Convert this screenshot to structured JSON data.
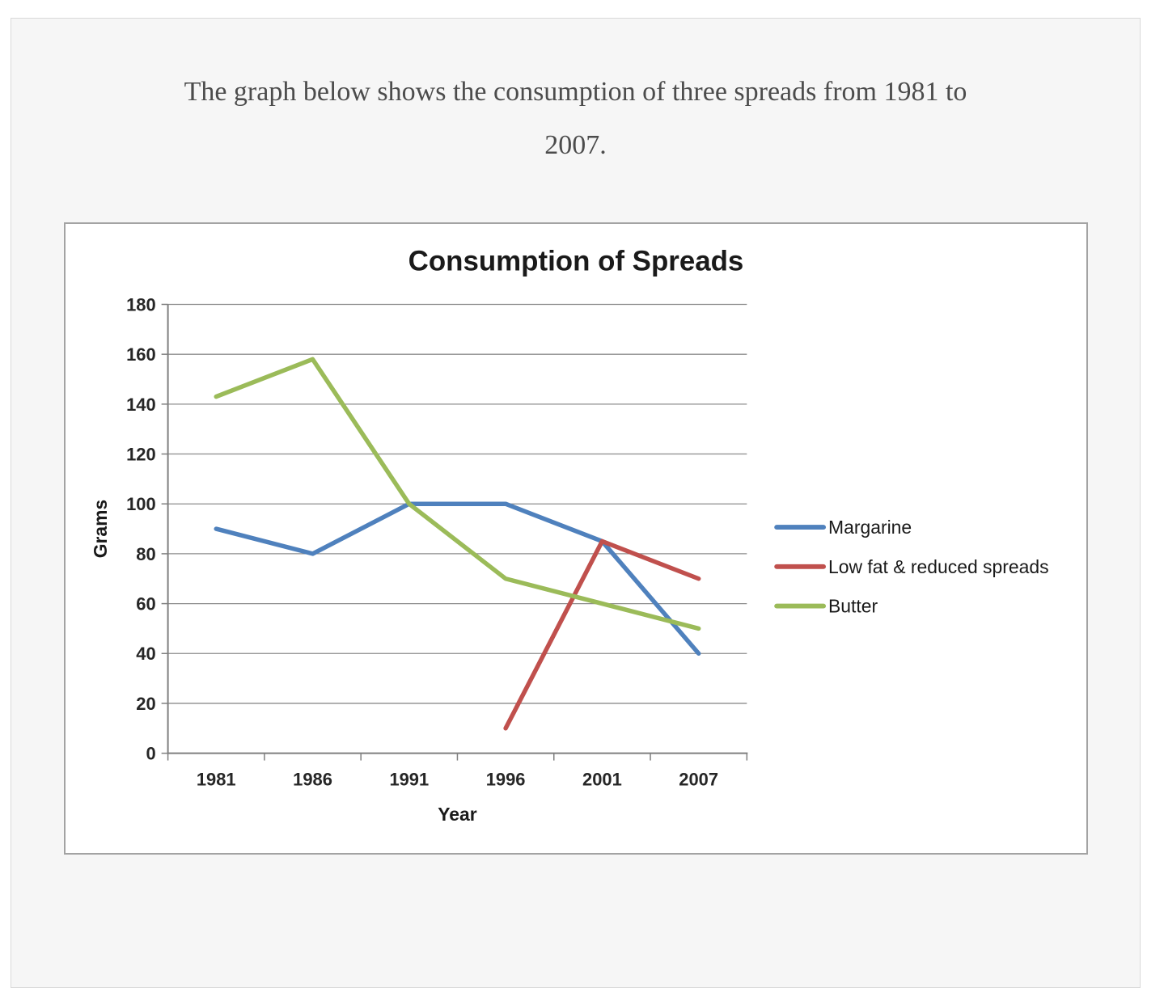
{
  "heading": {
    "line1": "The graph below shows the consumption of three spreads from 1981 to",
    "line2": "2007."
  },
  "chart_data": {
    "type": "line",
    "title": "Consumption of Spreads",
    "xlabel": "Year",
    "ylabel": "Grams",
    "categories": [
      "1981",
      "1986",
      "1991",
      "1996",
      "2001",
      "2007"
    ],
    "series": [
      {
        "name": "Margarine",
        "color": "#4f81bd",
        "values": [
          90,
          80,
          100,
          100,
          85,
          40
        ]
      },
      {
        "name": "Low fat & reduced spreads",
        "color": "#c0504d",
        "values": [
          null,
          null,
          null,
          10,
          85,
          70
        ]
      },
      {
        "name": "Butter",
        "color": "#9bbb59",
        "values": [
          143,
          158,
          100,
          70,
          60,
          50
        ]
      }
    ],
    "ylim": [
      0,
      180
    ],
    "ytick_step": 20,
    "grid": true,
    "legend_position": "right",
    "axis_color": "#7f7f7f",
    "gridline_color": "#8c8c8c"
  }
}
